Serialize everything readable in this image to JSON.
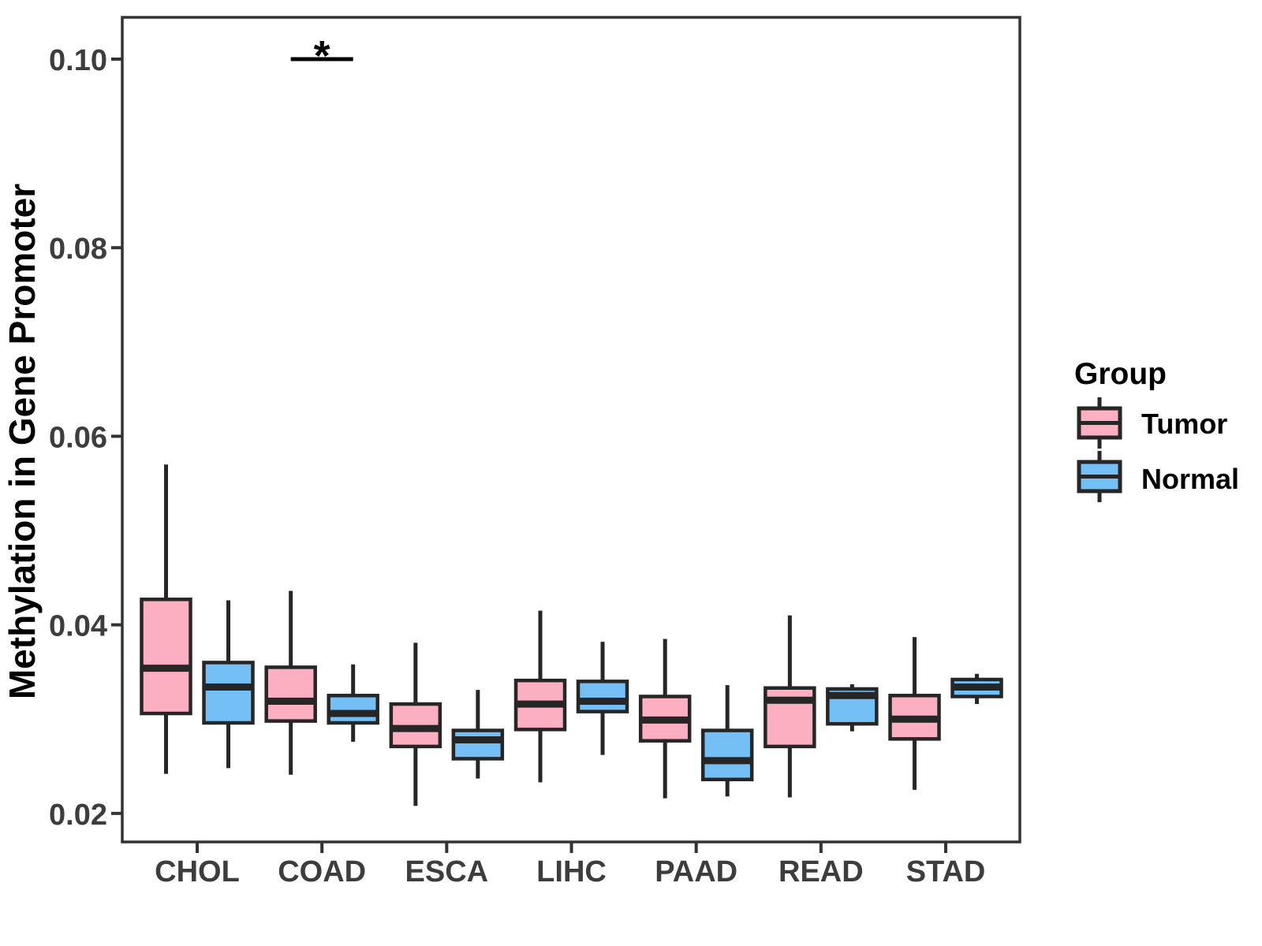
{
  "figure": {
    "background": "#ffffff"
  },
  "chart_data": {
    "type": "boxplot",
    "title": "",
    "xlabel": "",
    "ylabel": "Methylation in Gene Promoter",
    "categories": [
      "CHOL",
      "COAD",
      "ESCA",
      "LIHC",
      "PAAD",
      "READ",
      "STAD"
    ],
    "y_ticks": [
      0.02,
      0.04,
      0.06,
      0.08,
      0.1
    ],
    "y_tick_labels": [
      "0.02",
      "0.04",
      "0.06",
      "0.08",
      "0.10"
    ],
    "ylim": [
      0.0169,
      0.1044
    ],
    "grid": false,
    "legend_position": "right",
    "series": [
      {
        "name": "Tumor",
        "color": "#FBAFC1",
        "boxes": [
          {
            "category": "CHOL",
            "whisker_low": 0.0242,
            "q1": 0.0306,
            "median": 0.0354,
            "q3": 0.0427,
            "whisker_high": 0.057
          },
          {
            "category": "COAD",
            "whisker_low": 0.0241,
            "q1": 0.0298,
            "median": 0.0319,
            "q3": 0.0355,
            "whisker_high": 0.0436
          },
          {
            "category": "ESCA",
            "whisker_low": 0.0208,
            "q1": 0.0271,
            "median": 0.029,
            "q3": 0.0316,
            "whisker_high": 0.0381
          },
          {
            "category": "LIHC",
            "whisker_low": 0.0233,
            "q1": 0.0289,
            "median": 0.0316,
            "q3": 0.0341,
            "whisker_high": 0.0415
          },
          {
            "category": "PAAD",
            "whisker_low": 0.0216,
            "q1": 0.0277,
            "median": 0.0299,
            "q3": 0.0324,
            "whisker_high": 0.0385
          },
          {
            "category": "READ",
            "whisker_low": 0.0217,
            "q1": 0.0271,
            "median": 0.032,
            "q3": 0.0333,
            "whisker_high": 0.041
          },
          {
            "category": "STAD",
            "whisker_low": 0.0225,
            "q1": 0.0279,
            "median": 0.03,
            "q3": 0.0325,
            "whisker_high": 0.0387
          }
        ]
      },
      {
        "name": "Normal",
        "color": "#74BFF5",
        "boxes": [
          {
            "category": "CHOL",
            "whisker_low": 0.0248,
            "q1": 0.0296,
            "median": 0.0334,
            "q3": 0.036,
            "whisker_high": 0.0426
          },
          {
            "category": "COAD",
            "whisker_low": 0.0276,
            "q1": 0.0296,
            "median": 0.0306,
            "q3": 0.0325,
            "whisker_high": 0.0358
          },
          {
            "category": "ESCA",
            "whisker_low": 0.0237,
            "q1": 0.0258,
            "median": 0.0278,
            "q3": 0.0288,
            "whisker_high": 0.0331
          },
          {
            "category": "LIHC",
            "whisker_low": 0.0262,
            "q1": 0.0308,
            "median": 0.0319,
            "q3": 0.034,
            "whisker_high": 0.0382
          },
          {
            "category": "PAAD",
            "whisker_low": 0.0218,
            "q1": 0.0236,
            "median": 0.0256,
            "q3": 0.0288,
            "whisker_high": 0.0336
          },
          {
            "category": "READ",
            "whisker_low": 0.0287,
            "q1": 0.0295,
            "median": 0.0325,
            "q3": 0.0332,
            "whisker_high": 0.0337
          },
          {
            "category": "STAD",
            "whisker_low": 0.0316,
            "q1": 0.0324,
            "median": 0.0334,
            "q3": 0.0342,
            "whisker_high": 0.0348
          }
        ]
      }
    ],
    "significance": [
      {
        "category": "COAD",
        "label": "*",
        "bar_y": 0.1
      }
    ]
  },
  "legend": {
    "title": "Group",
    "entries": [
      {
        "label": "Tumor",
        "color": "#FBAFC1"
      },
      {
        "label": "Normal",
        "color": "#74BFF5"
      }
    ]
  },
  "colors": {
    "box_border": "#262626",
    "panel_border": "#333333",
    "tick_mark": "#333333",
    "tick_label": "#3D3D3D",
    "axis_title": "#000000",
    "legend_text": "#000000",
    "significance": "#000000"
  }
}
